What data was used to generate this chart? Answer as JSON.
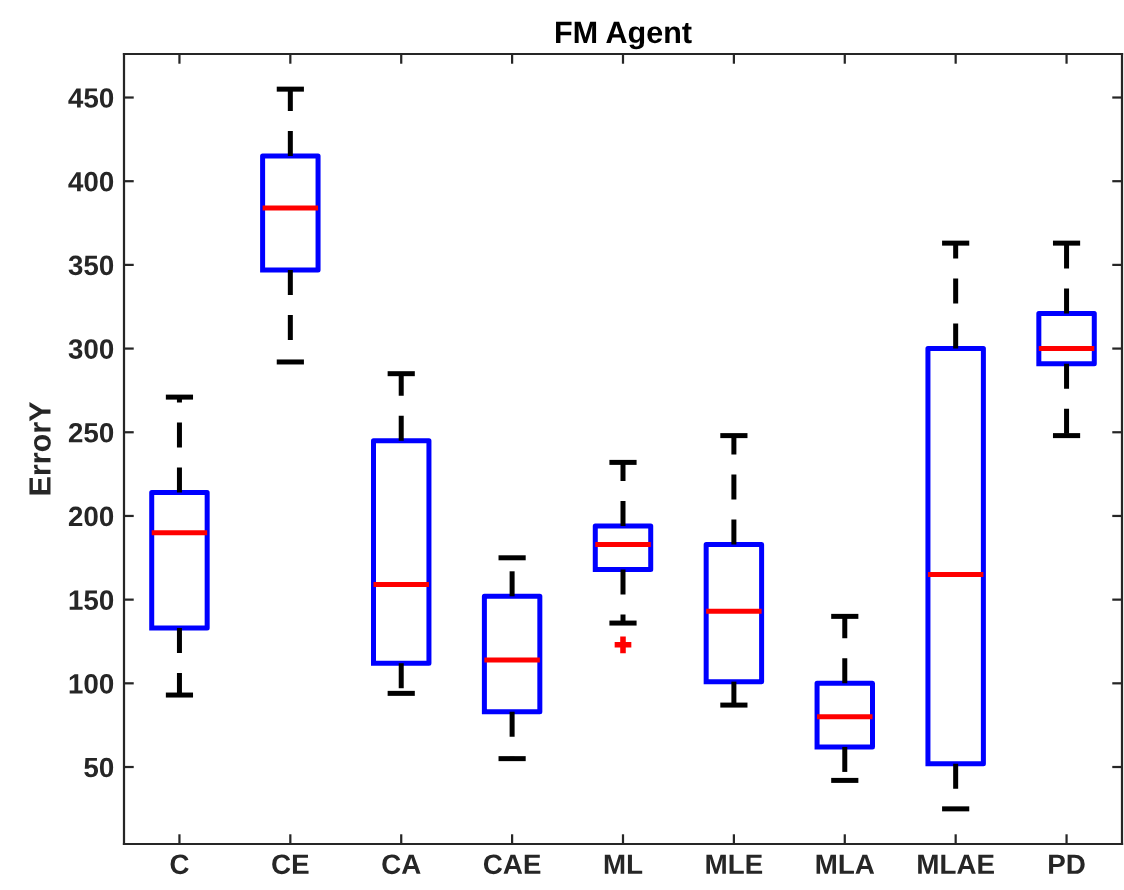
{
  "chart_data": {
    "type": "box",
    "title": "FM Agent",
    "ylabel": "ErrorY",
    "categories": [
      "C",
      "CE",
      "CA",
      "CAE",
      "ML",
      "MLE",
      "MLA",
      "MLAE",
      "PD"
    ],
    "boxes": [
      {
        "low": 93,
        "q1": 133,
        "median": 190,
        "q3": 214,
        "high": 271
      },
      {
        "low": 292,
        "q1": 347,
        "median": 384,
        "q3": 415,
        "high": 455
      },
      {
        "low": 94,
        "q1": 112,
        "median": 159,
        "q3": 245,
        "high": 285
      },
      {
        "low": 55,
        "q1": 83,
        "median": 114,
        "q3": 152,
        "high": 175
      },
      {
        "low": 136,
        "q1": 168,
        "median": 183,
        "q3": 194,
        "high": 232,
        "outliers": [
          123
        ]
      },
      {
        "low": 87,
        "q1": 101,
        "median": 143,
        "q3": 183,
        "high": 248
      },
      {
        "low": 42,
        "q1": 62,
        "median": 80,
        "q3": 100,
        "high": 140
      },
      {
        "low": 25,
        "q1": 52,
        "median": 165,
        "q3": 300,
        "high": 363
      },
      {
        "low": 248,
        "q1": 291,
        "median": 300,
        "q3": 321,
        "high": 363
      }
    ],
    "color": "#0000ff",
    "ylim": [
      4,
      476
    ],
    "yticks": [
      50,
      100,
      150,
      200,
      250,
      300,
      350,
      400,
      450
    ],
    "grid": false
  }
}
